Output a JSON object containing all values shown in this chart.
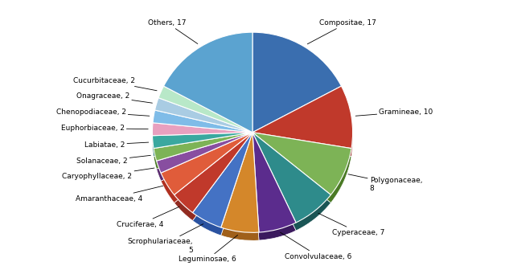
{
  "labels": [
    "Compositae, 17",
    "Gramineae, 10",
    "Polygonaceae,\n8",
    "Cyperaceae, 7",
    "Convolvulaceae, 6",
    "Leguminosae, 6",
    "Scrophulariaceae,\n5",
    "Cruciferae, 4",
    "Amaranthaceae, 4",
    "Caryophyllaceae, 2",
    "Solanaceae, 2",
    "Labiatae, 2",
    "Euphorbiaceae, 2",
    "Chenopodiaceae, 2",
    "Onagraceae, 2",
    "Cucurbitaceae, 2",
    "Others, 17"
  ],
  "values": [
    17,
    10,
    8,
    7,
    6,
    6,
    5,
    4,
    4,
    2,
    2,
    2,
    2,
    2,
    2,
    2,
    17
  ],
  "colors": [
    "#3A6EAF",
    "#C0392B",
    "#7DB356",
    "#2E8B8B",
    "#5B2C8D",
    "#D4872A",
    "#4472C4",
    "#C0392B",
    "#E05C3A",
    "#884EA0",
    "#7DB356",
    "#3AA89F",
    "#E8A0BF",
    "#7FBCE8",
    "#A9CCE3",
    "#B8E8C8",
    "#5BA3D0"
  ],
  "dark_colors": [
    "#1F3D7A",
    "#922B21",
    "#4A7A25",
    "#1A5555",
    "#3B1A5E",
    "#A0601A",
    "#2A52A0",
    "#922B21",
    "#B03020",
    "#5B2C6F",
    "#4A7A25",
    "#1A7068",
    "#C07090",
    "#4A88B8",
    "#6A9CC0",
    "#70B888",
    "#2A7AAA"
  ],
  "startangle": 90,
  "figsize": [
    6.28,
    3.31
  ],
  "dpi": 100,
  "label_positions": {
    "Compositae, 17": [
      0.58,
      0.88,
      "left"
    ],
    "Gramineae, 10": [
      1.0,
      0.45,
      "left"
    ],
    "Polygonaceae,\n8": [
      1.0,
      -0.12,
      "left"
    ],
    "Cyperaceae, 7": [
      0.82,
      -0.58,
      "left"
    ],
    "Convolvulaceae, 6": [
      0.45,
      -0.82,
      "left"
    ],
    "Leguminosae, 6": [
      -0.05,
      -0.88,
      "center"
    ],
    "Scrophulariaceae,\n5": [
      -0.35,
      -0.88,
      "center"
    ],
    "Cruciferae, 4": [
      -0.55,
      -0.75,
      "right"
    ],
    "Amaranthaceae, 4": [
      -0.72,
      -0.62,
      "right"
    ],
    "Caryophyllaceae, 2": [
      -0.82,
      -0.48,
      "right"
    ],
    "Solanaceae, 2": [
      -0.88,
      -0.35,
      "right"
    ],
    "Labiatae, 2": [
      -0.92,
      -0.18,
      "right"
    ],
    "Euphorbiaceae, 2": [
      -0.92,
      -0.02,
      "right"
    ],
    "Chenopodiaceae, 2": [
      -0.88,
      0.12,
      "right"
    ],
    "Onagraceae, 2": [
      -0.82,
      0.26,
      "right"
    ],
    "Cucurbitaceae, 2": [
      -0.72,
      0.42,
      "right"
    ],
    "Others, 17": [
      0.0,
      0.95,
      "center"
    ]
  }
}
